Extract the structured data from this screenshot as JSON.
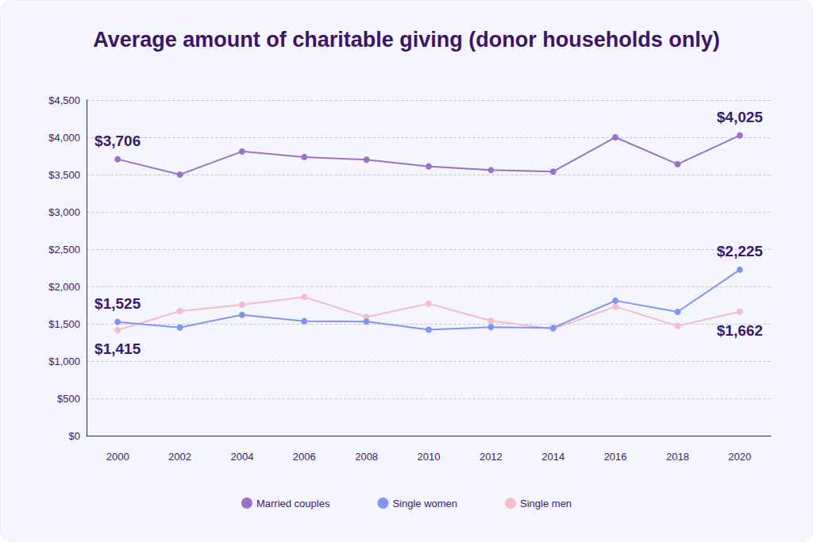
{
  "chart_data": {
    "type": "line",
    "title": "Average amount of charitable giving (donor households only)",
    "categories": [
      "2000",
      "2002",
      "2004",
      "2006",
      "2008",
      "2010",
      "2012",
      "2014",
      "2016",
      "2018",
      "2020"
    ],
    "series": [
      {
        "name": "Married couples",
        "color": "#9b72c8",
        "marker": "circle",
        "values": [
          3706,
          3500,
          3810,
          3735,
          3700,
          3610,
          3560,
          3540,
          4000,
          3640,
          4025
        ],
        "value_labels": [
          "$3,706",
          null,
          null,
          null,
          null,
          null,
          null,
          null,
          null,
          null,
          "$4,025"
        ]
      },
      {
        "name": "Single women",
        "color": "#8293f6",
        "marker": "circle",
        "values": [
          1525,
          1450,
          1620,
          1535,
          1530,
          1420,
          1455,
          1445,
          1810,
          1660,
          2225
        ],
        "value_labels": [
          "$1,525",
          null,
          null,
          null,
          null,
          null,
          null,
          null,
          null,
          null,
          "$2,225"
        ]
      },
      {
        "name": "Single men",
        "color": "#f4bccd",
        "marker": "circle",
        "values": [
          1415,
          1670,
          1755,
          1860,
          1590,
          1770,
          1540,
          1430,
          1730,
          1470,
          1662
        ],
        "value_labels": [
          "$1,415",
          null,
          null,
          null,
          null,
          null,
          null,
          null,
          null,
          null,
          "$1,662"
        ]
      }
    ],
    "ylim": [
      0,
      4500
    ],
    "yticks": [
      {
        "value": 0,
        "label": "$0"
      },
      {
        "value": 500,
        "label": "$500"
      },
      {
        "value": 1000,
        "label": "$1,000"
      },
      {
        "value": 1500,
        "label": "$1,500"
      },
      {
        "value": 2000,
        "label": "$2,000"
      },
      {
        "value": 2500,
        "label": "$2,500"
      },
      {
        "value": 3000,
        "label": "$3,000"
      },
      {
        "value": 3500,
        "label": "$3,500"
      },
      {
        "value": 4000,
        "label": "$4,000"
      },
      {
        "value": 4500,
        "label": "$4,500"
      }
    ],
    "grid": true,
    "legend": "bottom",
    "data_labels": true
  }
}
